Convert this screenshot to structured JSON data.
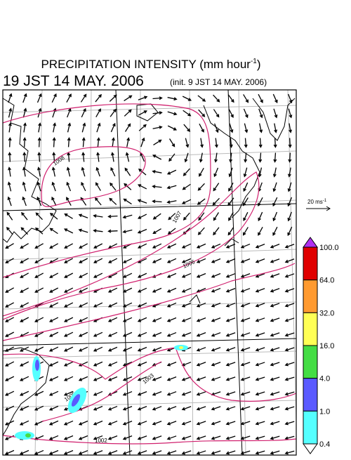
{
  "header": {
    "title": "PRECIPITATION INTENSITY (mm hour",
    "title_sup": "-1",
    "title_end": ")",
    "time": "19 JST 14 MAY. 2006",
    "init": "(init. 9 JST 14 MAY. 2006)"
  },
  "vector_scale": {
    "label": "20 ms",
    "label_sup": "-1"
  },
  "colorbar": {
    "labels": [
      "100.0",
      "64.0",
      "32.0",
      "16.0",
      "4.0",
      "1.0",
      "0.4"
    ],
    "top_color": "#b030f0",
    "colors": [
      "#e00000",
      "#ff9a30",
      "#ffff55",
      "#44dd44",
      "#5a5aff",
      "#55ffff"
    ],
    "bottom_color": "#ffffff"
  },
  "contours": {
    "labels": [
      "1008",
      "1007",
      "1006",
      "1005",
      "1003",
      "1002"
    ]
  }
}
